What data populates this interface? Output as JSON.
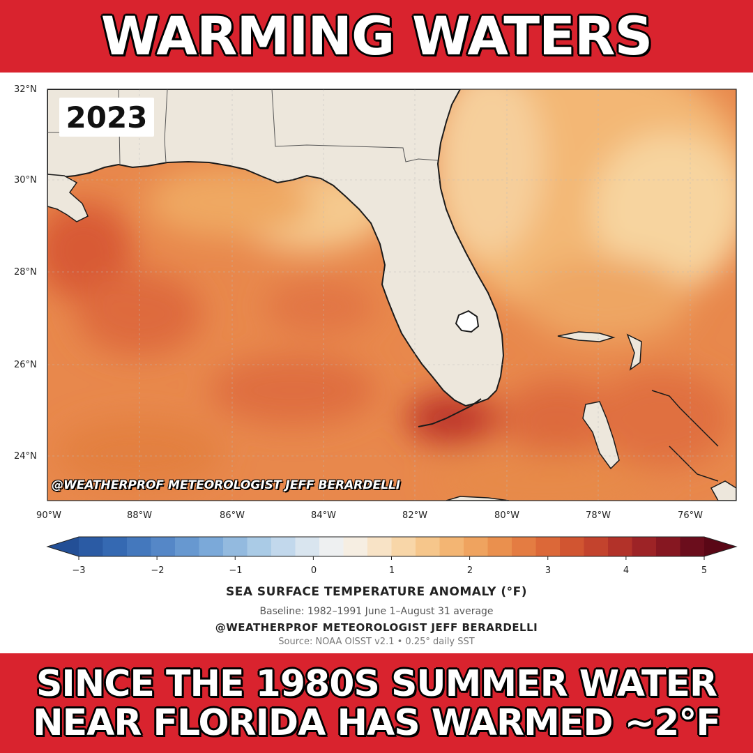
{
  "header": {
    "headline": "WARMING WATERS"
  },
  "map": {
    "year_label": "2023",
    "overlay_credit": "@WEATHERPROF METEOROLOGIST JEFF BERARDELLI",
    "lat_ticks": [
      "32°N",
      "30°N",
      "28°N",
      "26°N",
      "24°N"
    ],
    "lon_ticks": [
      "90°W",
      "88°W",
      "86°W",
      "84°W",
      "82°W",
      "80°W",
      "78°W",
      "76°W"
    ],
    "land_color": "#ede7dc",
    "coast_color": "#1a1a1a"
  },
  "colorbar": {
    "ticks": [
      "−3",
      "−2",
      "−1",
      "0",
      "1",
      "2",
      "3",
      "4",
      "5"
    ],
    "colors": [
      "#2b5ba4",
      "#3569b2",
      "#4478bd",
      "#5587c7",
      "#6798d0",
      "#7ba9d9",
      "#93badf",
      "#aacbe6",
      "#c2d8ec",
      "#d9e5ef",
      "#eef0f1",
      "#f6eee2",
      "#f8e3c6",
      "#f8d6a8",
      "#f6c68b",
      "#f3b573",
      "#efa35f",
      "#ea904e",
      "#e47c42",
      "#dc6838",
      "#d15531",
      "#c3432d",
      "#b23229",
      "#9d2326",
      "#861721",
      "#6b0d1c"
    ],
    "low_color": "#234f96",
    "high_color": "#5a0716"
  },
  "caption": {
    "title": "SEA SURFACE TEMPERATURE ANOMALY (°F)",
    "baseline": "Baseline: 1982–1991 June 1–August 31 average",
    "credit": "@WEATHERPROF METEOROLOGIST JEFF BERARDELLI",
    "source": "Source: NOAA OISST v2.1 • 0.25° daily SST"
  },
  "footer": {
    "line1": "SINCE THE 1980S SUMMER WATER",
    "line2": "NEAR FLORIDA HAS WARMED ~2°F"
  }
}
